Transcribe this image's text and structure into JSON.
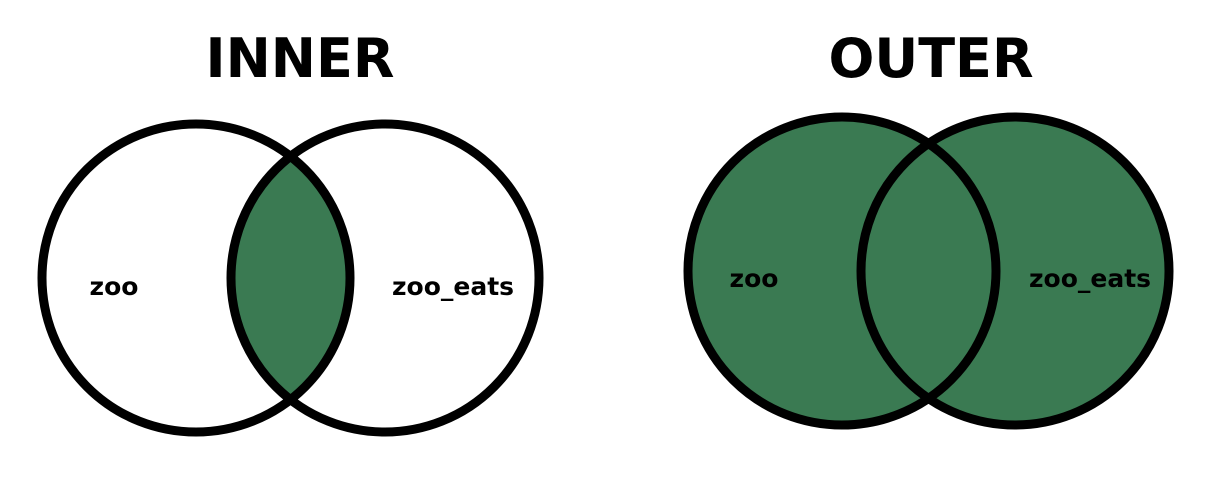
{
  "colors": {
    "fill": "#3a7a52",
    "stroke": "#000000",
    "background": "#ffffff"
  },
  "diagrams": [
    {
      "title": "INNER",
      "left_set": "zoo",
      "right_set": "zoo_eats",
      "highlight": "intersection"
    },
    {
      "title": "OUTER",
      "left_set": "zoo",
      "right_set": "zoo_eats",
      "highlight": "union"
    }
  ]
}
